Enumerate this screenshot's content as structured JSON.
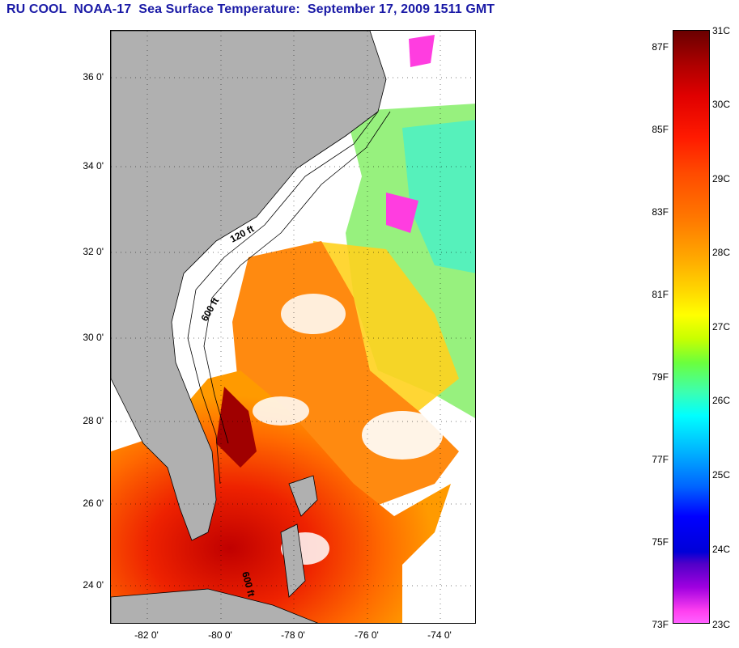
{
  "title": "RU COOL  NOAA-17  Sea Surface Temperature:  September 17, 2009 1511 GMT",
  "lat_labels": [
    "36 0'",
    "34 0'",
    "32 0'",
    "30 0'",
    "28 0'",
    "26 0'",
    "24 0'"
  ],
  "lon_labels": [
    "-82 0'",
    "-80 0'",
    "-78 0'",
    "-76 0'",
    "-74 0'"
  ],
  "depth_labels": [
    "120 ft",
    "600 ft",
    "600 ft"
  ],
  "colorbar": {
    "fahrenheit": [
      "87F",
      "85F",
      "83F",
      "81F",
      "79F",
      "77F",
      "75F",
      "73F"
    ],
    "celsius": [
      "31C",
      "30C",
      "29C",
      "28C",
      "27C",
      "26C",
      "25C",
      "24C",
      "23C"
    ]
  },
  "map_data": {
    "type": "sea-surface-temperature",
    "lat_range": [
      23,
      37
    ],
    "lon_range": [
      -83,
      -73
    ],
    "temp_range_c": [
      23,
      31
    ],
    "land_color": "#b0b0b0",
    "cloud_color": "#ffffff"
  }
}
